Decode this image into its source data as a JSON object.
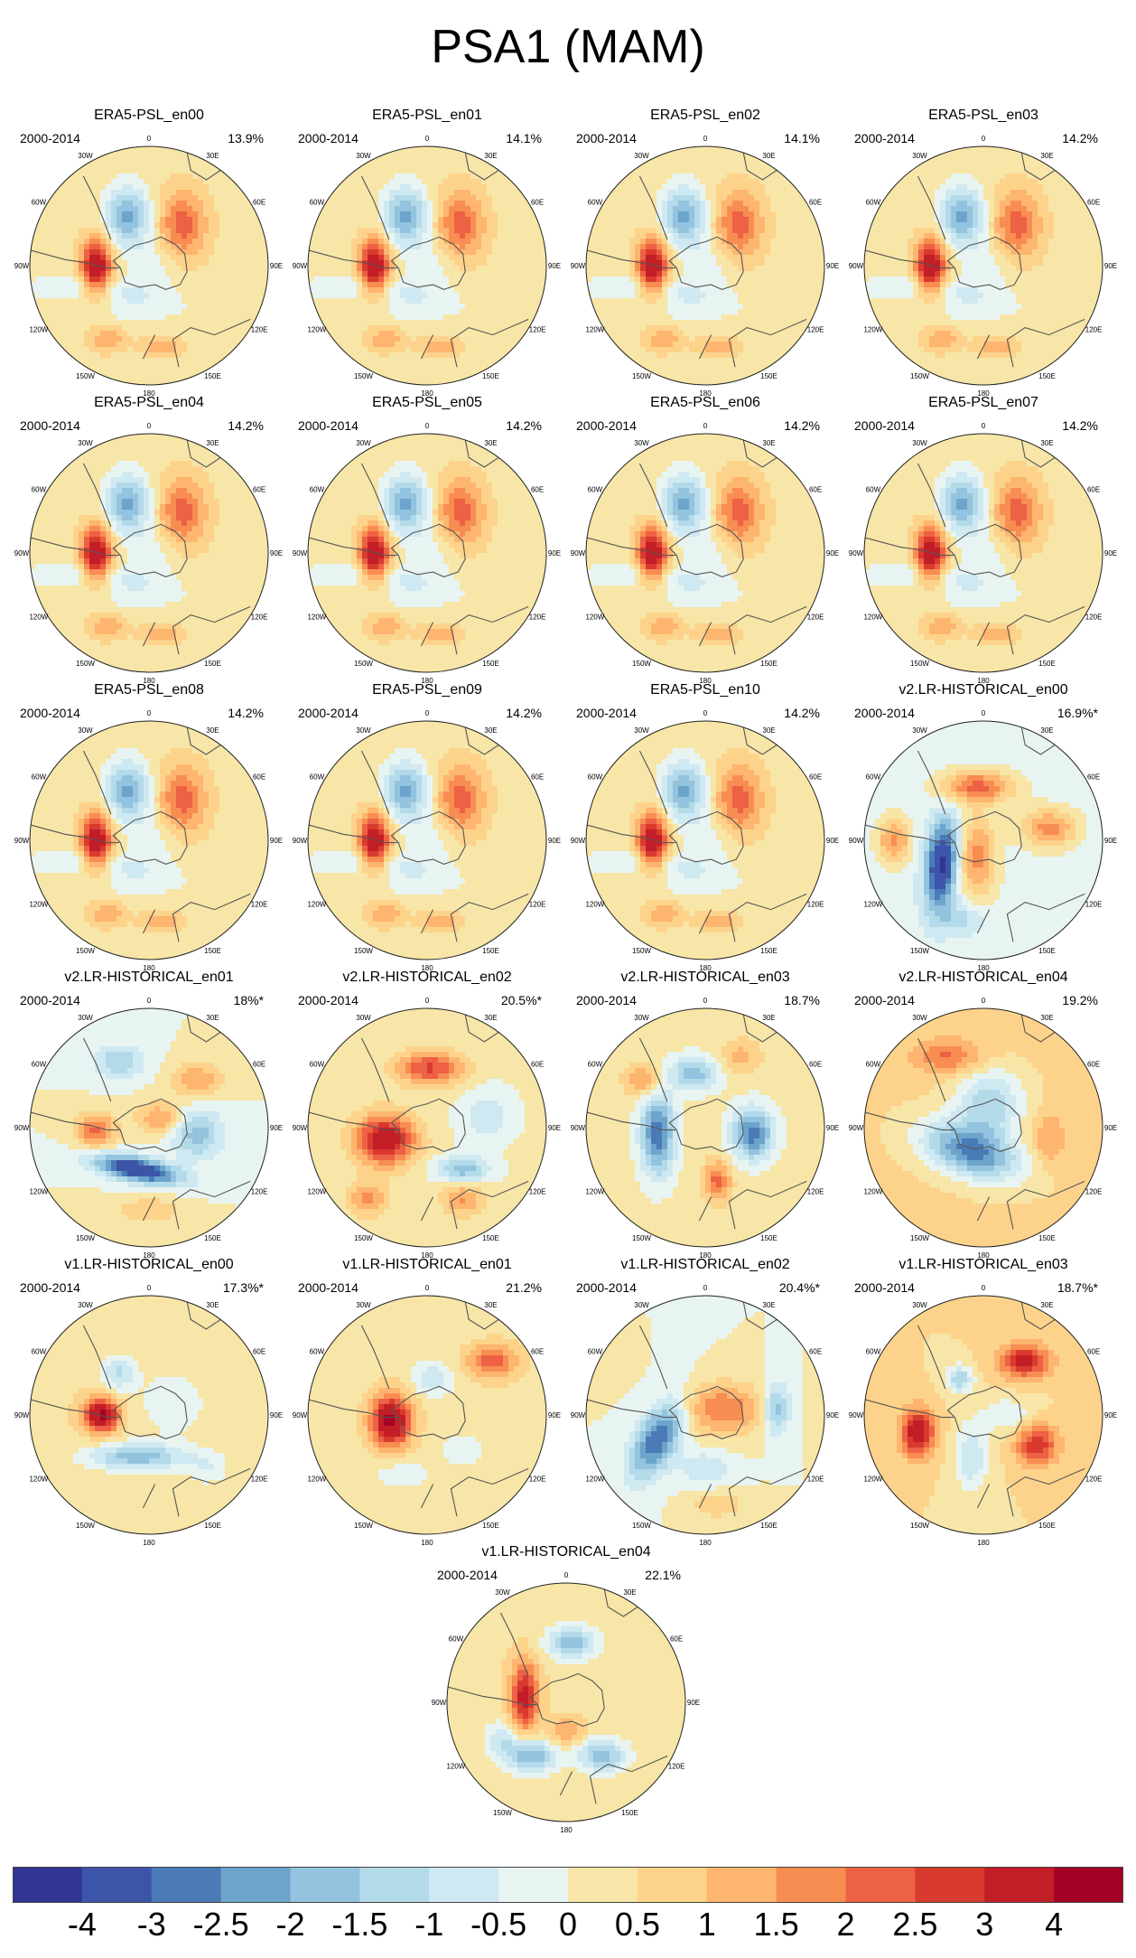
{
  "title": "PSA1 (MAM)",
  "period": "2000-2014",
  "lon_labels": {
    "l0": "0",
    "l30e": "30E",
    "l60e": "60E",
    "l90e": "90E",
    "l120e": "120E",
    "l150e": "150E",
    "l180": "180",
    "l150w": "150W",
    "l120w": "120W",
    "l90w": "90W",
    "l60w": "60W",
    "l30w": "30W"
  },
  "panels": [
    {
      "name": "ERA5-PSL_en00",
      "variance": "13.9%",
      "pattern": "era5"
    },
    {
      "name": "ERA5-PSL_en01",
      "variance": "14.1%",
      "pattern": "era5"
    },
    {
      "name": "ERA5-PSL_en02",
      "variance": "14.1%",
      "pattern": "era5"
    },
    {
      "name": "ERA5-PSL_en03",
      "variance": "14.2%",
      "pattern": "era5"
    },
    {
      "name": "ERA5-PSL_en04",
      "variance": "14.2%",
      "pattern": "era5"
    },
    {
      "name": "ERA5-PSL_en05",
      "variance": "14.2%",
      "pattern": "era5"
    },
    {
      "name": "ERA5-PSL_en06",
      "variance": "14.2%",
      "pattern": "era5"
    },
    {
      "name": "ERA5-PSL_en07",
      "variance": "14.2%",
      "pattern": "era5"
    },
    {
      "name": "ERA5-PSL_en08",
      "variance": "14.2%",
      "pattern": "era5"
    },
    {
      "name": "ERA5-PSL_en09",
      "variance": "14.2%",
      "pattern": "era5"
    },
    {
      "name": "ERA5-PSL_en10",
      "variance": "14.2%",
      "pattern": "era5"
    },
    {
      "name": "v2.LR-HISTORICAL_en00",
      "variance": "16.9%*",
      "pattern": "v2en00"
    },
    {
      "name": "v2.LR-HISTORICAL_en01",
      "variance": "18%*",
      "pattern": "v2en01"
    },
    {
      "name": "v2.LR-HISTORICAL_en02",
      "variance": "20.5%*",
      "pattern": "v2en02"
    },
    {
      "name": "v2.LR-HISTORICAL_en03",
      "variance": "18.7%",
      "pattern": "v2en03"
    },
    {
      "name": "v2.LR-HISTORICAL_en04",
      "variance": "19.2%",
      "pattern": "v2en04"
    },
    {
      "name": "v1.LR-HISTORICAL_en00",
      "variance": "17.3%*",
      "pattern": "v1en00"
    },
    {
      "name": "v1.LR-HISTORICAL_en01",
      "variance": "21.2%",
      "pattern": "v1en01"
    },
    {
      "name": "v1.LR-HISTORICAL_en02",
      "variance": "20.4%*",
      "pattern": "v1en02"
    },
    {
      "name": "v1.LR-HISTORICAL_en03",
      "variance": "18.7%*",
      "pattern": "v1en03"
    },
    {
      "name": "v1.LR-HISTORICAL_en04",
      "variance": "22.1%",
      "pattern": "v1en04"
    }
  ],
  "patterns": {
    "era5": {
      "base": 0.3,
      "blobs": [
        {
          "dx": -0.44,
          "dy": 0.02,
          "sx": 0.09,
          "sy": 0.17,
          "v": 3.6,
          "rot": 0
        },
        {
          "dx": -0.18,
          "dy": -0.42,
          "sx": 0.13,
          "sy": 0.17,
          "v": -2.4,
          "rot": 0
        },
        {
          "dx": 0.28,
          "dy": -0.34,
          "sx": 0.14,
          "sy": 0.2,
          "v": 2.0,
          "rot": 0
        },
        {
          "dx": -0.55,
          "dy": 0.18,
          "sx": 0.35,
          "sy": 0.07,
          "v": -0.9,
          "rot": 0
        },
        {
          "dx": -0.1,
          "dy": 0.33,
          "sx": 0.3,
          "sy": 0.1,
          "v": -0.7,
          "rot": 0
        },
        {
          "dx": -0.35,
          "dy": 0.62,
          "sx": 0.11,
          "sy": 0.07,
          "v": 1.2,
          "rot": 0
        },
        {
          "dx": 0.12,
          "dy": 0.68,
          "sx": 0.12,
          "sy": 0.06,
          "v": 1.1,
          "rot": 0
        },
        {
          "dx": 0.02,
          "dy": -0.02,
          "sx": 0.16,
          "sy": 0.16,
          "v": -0.6,
          "rot": 0
        }
      ]
    },
    "v2en00": {
      "base": -0.3,
      "blobs": [
        {
          "dx": -0.35,
          "dy": 0.2,
          "sx": 0.09,
          "sy": 0.25,
          "v": -4.0,
          "rot": 0.1
        },
        {
          "dx": -0.05,
          "dy": -0.45,
          "sx": 0.22,
          "sy": 0.1,
          "v": 2.4,
          "rot": 0
        },
        {
          "dx": -0.75,
          "dy": 0.0,
          "sx": 0.1,
          "sy": 0.14,
          "v": 2.0,
          "rot": 0
        },
        {
          "dx": -0.05,
          "dy": 0.15,
          "sx": 0.12,
          "sy": 0.25,
          "v": 2.0,
          "rot": 0
        },
        {
          "dx": 0.55,
          "dy": -0.1,
          "sx": 0.17,
          "sy": 0.12,
          "v": 2.0,
          "rot": 0
        },
        {
          "dx": -0.2,
          "dy": 0.65,
          "sx": 0.15,
          "sy": 0.1,
          "v": -1.0,
          "rot": 0
        }
      ]
    },
    "v2en01": {
      "base": 0.0,
      "blobs": [
        {
          "dx": -0.1,
          "dy": 0.35,
          "sx": 0.25,
          "sy": 0.07,
          "v": -4.0,
          "rot": 0.2
        },
        {
          "dx": -0.45,
          "dy": 0.02,
          "sx": 0.12,
          "sy": 0.1,
          "v": 2.2,
          "rot": 0
        },
        {
          "dx": 0.1,
          "dy": -0.08,
          "sx": 0.15,
          "sy": 0.1,
          "v": 1.5,
          "rot": 0
        },
        {
          "dx": -0.25,
          "dy": -0.55,
          "sx": 0.15,
          "sy": 0.1,
          "v": -1.5,
          "rot": 0
        },
        {
          "dx": 0.4,
          "dy": -0.4,
          "sx": 0.15,
          "sy": 0.1,
          "v": 1.5,
          "rot": 0
        },
        {
          "dx": 0.4,
          "dy": 0.05,
          "sx": 0.15,
          "sy": 0.15,
          "v": -1.8,
          "rot": 0
        },
        {
          "dx": 0.0,
          "dy": 0.7,
          "sx": 0.2,
          "sy": 0.08,
          "v": 1.0,
          "rot": 0
        }
      ]
    },
    "v2en02": {
      "base": 0.1,
      "blobs": [
        {
          "dx": -0.35,
          "dy": 0.1,
          "sx": 0.18,
          "sy": 0.15,
          "v": 3.5,
          "rot": 0
        },
        {
          "dx": 0.02,
          "dy": -0.5,
          "sx": 0.2,
          "sy": 0.1,
          "v": 2.5,
          "rot": 0
        },
        {
          "dx": 0.3,
          "dy": 0.35,
          "sx": 0.15,
          "sy": 0.08,
          "v": -2.0,
          "rot": 0
        },
        {
          "dx": 0.5,
          "dy": -0.1,
          "sx": 0.15,
          "sy": 0.15,
          "v": -1.0,
          "rot": 0
        },
        {
          "dx": 0.3,
          "dy": 0.6,
          "sx": 0.12,
          "sy": 0.1,
          "v": 1.5,
          "rot": 0
        },
        {
          "dx": -0.5,
          "dy": 0.6,
          "sx": 0.12,
          "sy": 0.1,
          "v": 1.5,
          "rot": 0
        }
      ]
    },
    "v2en03": {
      "base": 0.2,
      "blobs": [
        {
          "dx": -0.4,
          "dy": 0.05,
          "sx": 0.1,
          "sy": 0.25,
          "v": -3.0,
          "rot": 0
        },
        {
          "dx": 0.4,
          "dy": 0.05,
          "sx": 0.12,
          "sy": 0.15,
          "v": -3.0,
          "rot": 0
        },
        {
          "dx": -0.1,
          "dy": -0.45,
          "sx": 0.15,
          "sy": 0.1,
          "v": -2.0,
          "rot": 0
        },
        {
          "dx": 0.1,
          "dy": 0.45,
          "sx": 0.08,
          "sy": 0.12,
          "v": 2.0,
          "rot": 0
        },
        {
          "dx": -0.5,
          "dy": -0.4,
          "sx": 0.12,
          "sy": 0.1,
          "v": 1.5,
          "rot": 0
        },
        {
          "dx": 0.3,
          "dy": -0.6,
          "sx": 0.12,
          "sy": 0.1,
          "v": 1.0,
          "rot": 0
        }
      ]
    },
    "v2en04": {
      "base": 0.6,
      "blobs": [
        {
          "dx": -0.1,
          "dy": 0.2,
          "sx": 0.3,
          "sy": 0.15,
          "v": -3.2,
          "rot": 0.3
        },
        {
          "dx": 0.05,
          "dy": -0.2,
          "sx": 0.2,
          "sy": 0.2,
          "v": -2.0,
          "rot": 0
        },
        {
          "dx": -0.3,
          "dy": -0.6,
          "sx": 0.2,
          "sy": 0.1,
          "v": 1.5,
          "rot": 0
        },
        {
          "dx": 0.55,
          "dy": 0.1,
          "sx": 0.1,
          "sy": 0.15,
          "v": 1.0,
          "rot": 0
        }
      ]
    },
    "v1en00": {
      "base": 0.4,
      "blobs": [
        {
          "dx": -0.4,
          "dy": 0.0,
          "sx": 0.1,
          "sy": 0.1,
          "v": 3.8,
          "rot": 0
        },
        {
          "dx": -0.25,
          "dy": -0.35,
          "sx": 0.1,
          "sy": 0.1,
          "v": -1.5,
          "rot": 0
        },
        {
          "dx": -0.1,
          "dy": 0.35,
          "sx": 0.3,
          "sy": 0.08,
          "v": -2.2,
          "rot": 0
        },
        {
          "dx": 0.2,
          "dy": -0.1,
          "sx": 0.2,
          "sy": 0.2,
          "v": -0.8,
          "rot": 0
        },
        {
          "dx": 0.5,
          "dy": 0.45,
          "sx": 0.12,
          "sy": 0.1,
          "v": -0.8,
          "rot": 0
        }
      ]
    },
    "v1en01": {
      "base": 0.3,
      "blobs": [
        {
          "dx": -0.3,
          "dy": 0.05,
          "sx": 0.12,
          "sy": 0.15,
          "v": 4.0,
          "rot": 0
        },
        {
          "dx": 0.55,
          "dy": -0.45,
          "sx": 0.15,
          "sy": 0.1,
          "v": 2.0,
          "rot": 0
        },
        {
          "dx": 0.05,
          "dy": -0.3,
          "sx": 0.12,
          "sy": 0.1,
          "v": -1.2,
          "rot": 0
        },
        {
          "dx": -0.2,
          "dy": 0.5,
          "sx": 0.15,
          "sy": 0.08,
          "v": -0.8,
          "rot": 0
        },
        {
          "dx": 0.3,
          "dy": 0.3,
          "sx": 0.15,
          "sy": 0.1,
          "v": -0.6,
          "rot": 0
        }
      ]
    },
    "v1en02": {
      "base": 0.0,
      "blobs": [
        {
          "dx": -0.4,
          "dy": 0.2,
          "sx": 0.12,
          "sy": 0.25,
          "v": -3.0,
          "rot": 0.5
        },
        {
          "dx": 0.15,
          "dy": -0.05,
          "sx": 0.25,
          "sy": 0.15,
          "v": 2.0,
          "rot": 0
        },
        {
          "dx": 0.6,
          "dy": -0.05,
          "sx": 0.08,
          "sy": 0.15,
          "v": -2.0,
          "rot": 0
        },
        {
          "dx": 0.0,
          "dy": 0.45,
          "sx": 0.15,
          "sy": 0.1,
          "v": -1.0,
          "rot": 0
        },
        {
          "dx": 0.1,
          "dy": 0.75,
          "sx": 0.15,
          "sy": 0.08,
          "v": 1.0,
          "rot": 0
        }
      ]
    },
    "v1en03": {
      "base": 0.5,
      "blobs": [
        {
          "dx": -0.55,
          "dy": 0.15,
          "sx": 0.1,
          "sy": 0.14,
          "v": 3.2,
          "rot": 0
        },
        {
          "dx": 0.35,
          "dy": -0.45,
          "sx": 0.15,
          "sy": 0.1,
          "v": 2.8,
          "rot": 0
        },
        {
          "dx": 0.45,
          "dy": 0.25,
          "sx": 0.12,
          "sy": 0.12,
          "v": 2.5,
          "rot": 0
        },
        {
          "dx": -0.1,
          "dy": 0.35,
          "sx": 0.1,
          "sy": 0.2,
          "v": -1.5,
          "rot": 0
        },
        {
          "dx": -0.2,
          "dy": -0.3,
          "sx": 0.08,
          "sy": 0.08,
          "v": -2.0,
          "rot": 0
        },
        {
          "dx": 0.2,
          "dy": 0.0,
          "sx": 0.15,
          "sy": 0.1,
          "v": -1.0,
          "rot": 0
        }
      ]
    },
    "v1en04": {
      "base": 0.4,
      "blobs": [
        {
          "dx": -0.35,
          "dy": -0.05,
          "sx": 0.08,
          "sy": 0.2,
          "v": 3.0,
          "rot": 0
        },
        {
          "dx": 0.05,
          "dy": -0.5,
          "sx": 0.15,
          "sy": 0.1,
          "v": -2.2,
          "rot": 0
        },
        {
          "dx": -0.3,
          "dy": 0.45,
          "sx": 0.15,
          "sy": 0.1,
          "v": -2.5,
          "rot": 0
        },
        {
          "dx": 0.3,
          "dy": 0.45,
          "sx": 0.15,
          "sy": 0.1,
          "v": -2.2,
          "rot": 0
        },
        {
          "dx": 0.0,
          "dy": 0.25,
          "sx": 0.1,
          "sy": 0.08,
          "v": 1.2,
          "rot": 0
        },
        {
          "dx": -0.55,
          "dy": 0.3,
          "sx": 0.1,
          "sy": 0.1,
          "v": -1.2,
          "rot": 0
        }
      ]
    }
  },
  "colorbar": {
    "levels": [
      "-4",
      "-3",
      "-2.5",
      "-2",
      "-1.5",
      "-1",
      "-0.5",
      "0",
      "0.5",
      "1",
      "1.5",
      "2",
      "2.5",
      "3",
      "4"
    ],
    "colors": [
      "#313695",
      "#3d55a8",
      "#4a7bb7",
      "#6da4cc",
      "#93c3de",
      "#b3dae9",
      "#cfe9f2",
      "#e8f4f2",
      "#f7e6a7",
      "#fdd38b",
      "#fdb56f",
      "#f88d52",
      "#ed6144",
      "#d93a2e",
      "#c21e27",
      "#a50026"
    ]
  }
}
